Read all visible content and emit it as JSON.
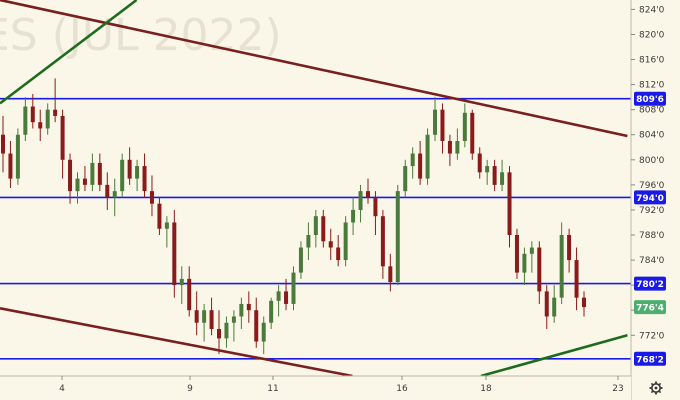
{
  "chart_data": {
    "type": "candlestick",
    "watermark": "ES (JUL 2022)",
    "x_ticks": [
      "4",
      "9",
      "11",
      "16",
      "18",
      "23"
    ],
    "y_ticks": [
      "824'0",
      "820'0",
      "816'0",
      "812'0",
      "808'0",
      "804'0",
      "800'0",
      "796'0",
      "792'0",
      "788'0",
      "784'0",
      "780'0",
      "776'0",
      "772'0"
    ],
    "ylim": [
      765.5,
      825.5
    ],
    "horizontal_levels": [
      {
        "label": "809'6",
        "value": 809.75,
        "color": "#1a1ae6"
      },
      {
        "label": "794'0",
        "value": 794.0,
        "color": "#1a1ae6"
      },
      {
        "label": "780'2",
        "value": 780.25,
        "color": "#1a1ae6"
      },
      {
        "label": "768'2",
        "value": 768.25,
        "color": "#1a1ae6"
      }
    ],
    "last_price": {
      "label": "776'4",
      "value": 776.5,
      "color": "#4caf70"
    },
    "trendlines": [
      {
        "name": "upper-resistance",
        "color": "#7a1f1f",
        "x": [
          0,
          26.0
        ],
        "y": [
          825.5,
          803.8
        ]
      },
      {
        "name": "lower-support",
        "color": "#7a1f1f",
        "x": [
          0,
          15.3
        ],
        "y": [
          776.3,
          765.5
        ]
      },
      {
        "name": "left-uptrend",
        "color": "#1e6b1e",
        "x": [
          0,
          6.9
        ],
        "y": [
          809.0,
          825.5
        ]
      },
      {
        "name": "right-uptrend",
        "color": "#1e6b1e",
        "x": [
          20.3,
          26.0
        ],
        "y": [
          765.5,
          772.0
        ]
      }
    ],
    "candle_colors": {
      "up": "#4a7a3c",
      "down": "#8b1a1a"
    },
    "ohlc": [
      [
        804.0,
        807.0,
        798.0,
        801.0
      ],
      [
        801.0,
        803.0,
        795.5,
        797.0
      ],
      [
        797.0,
        805.0,
        796.0,
        804.0
      ],
      [
        804.0,
        810.0,
        803.0,
        808.5
      ],
      [
        808.5,
        810.5,
        805.0,
        806.0
      ],
      [
        806.0,
        808.0,
        803.0,
        805.0
      ],
      [
        805.0,
        809.0,
        804.0,
        808.0
      ],
      [
        808.0,
        813.0,
        806.0,
        807.0
      ],
      [
        807.0,
        808.0,
        797.0,
        800.0
      ],
      [
        800.0,
        801.0,
        793.0,
        795.0
      ],
      [
        795.0,
        798.0,
        793.0,
        797.0
      ],
      [
        797.0,
        799.0,
        795.0,
        796.0
      ],
      [
        796.0,
        801.0,
        795.0,
        799.5
      ],
      [
        799.5,
        801.0,
        795.0,
        796.0
      ],
      [
        796.0,
        798.0,
        792.0,
        794.0
      ],
      [
        794.0,
        797.0,
        791.0,
        795.0
      ],
      [
        795.0,
        801.0,
        794.0,
        800.0
      ],
      [
        800.0,
        802.0,
        796.0,
        797.0
      ],
      [
        797.0,
        800.0,
        795.0,
        799.0
      ],
      [
        799.0,
        801.0,
        794.0,
        795.0
      ],
      [
        795.0,
        797.5,
        791.0,
        793.0
      ],
      [
        793.0,
        794.0,
        788.0,
        789.0
      ],
      [
        789.0,
        791.0,
        786.0,
        790.0
      ],
      [
        790.0,
        792.0,
        778.0,
        780.0
      ],
      [
        780.0,
        783.0,
        777.0,
        781.0
      ],
      [
        781.0,
        783.0,
        775.0,
        776.0
      ],
      [
        776.0,
        779.0,
        772.0,
        774.0
      ],
      [
        774.0,
        777.0,
        771.0,
        776.0
      ],
      [
        776.0,
        778.0,
        772.0,
        773.0
      ],
      [
        773.0,
        776.0,
        769.0,
        771.5
      ],
      [
        771.5,
        775.0,
        770.0,
        774.0
      ],
      [
        774.0,
        776.0,
        771.0,
        775.0
      ],
      [
        775.0,
        778.0,
        773.0,
        777.0
      ],
      [
        777.0,
        779.0,
        774.0,
        776.0
      ],
      [
        776.0,
        778.0,
        770.0,
        771.0
      ],
      [
        771.0,
        775.0,
        769.0,
        774.0
      ],
      [
        774.0,
        778.0,
        773.0,
        777.5
      ],
      [
        777.5,
        780.0,
        775.0,
        779.0
      ],
      [
        779.0,
        781.0,
        776.0,
        777.0
      ],
      [
        777.0,
        783.0,
        776.0,
        782.0
      ],
      [
        782.0,
        787.0,
        781.0,
        786.0
      ],
      [
        786.0,
        790.0,
        784.0,
        788.0
      ],
      [
        788.0,
        792.0,
        786.0,
        791.0
      ],
      [
        791.0,
        792.0,
        786.0,
        787.0
      ],
      [
        787.0,
        789.0,
        784.0,
        786.0
      ],
      [
        786.0,
        788.0,
        783.0,
        784.0
      ],
      [
        784.0,
        791.0,
        783.0,
        790.0
      ],
      [
        790.0,
        794.0,
        788.0,
        792.0
      ],
      [
        792.0,
        796.0,
        790.0,
        795.0
      ],
      [
        795.0,
        797.0,
        793.0,
        794.0
      ],
      [
        794.0,
        795.0,
        788.0,
        791.0
      ],
      [
        791.0,
        792.0,
        781.0,
        783.0
      ],
      [
        783.0,
        785.0,
        779.0,
        780.5
      ],
      [
        780.5,
        796.0,
        780.0,
        795.0
      ],
      [
        795.0,
        800.0,
        794.0,
        799.0
      ],
      [
        799.0,
        802.0,
        797.0,
        801.0
      ],
      [
        801.0,
        803.0,
        796.0,
        797.0
      ],
      [
        797.0,
        805.0,
        796.0,
        804.0
      ],
      [
        804.0,
        810.0,
        803.0,
        808.0
      ],
      [
        808.0,
        809.0,
        801.0,
        803.0
      ],
      [
        803.0,
        804.0,
        799.0,
        801.0
      ],
      [
        801.0,
        805.0,
        800.0,
        803.0
      ],
      [
        803.0,
        809.0,
        802.0,
        807.5
      ],
      [
        807.5,
        808.0,
        800.0,
        801.0
      ],
      [
        801.0,
        802.0,
        797.0,
        798.0
      ],
      [
        798.0,
        800.0,
        796.0,
        799.0
      ],
      [
        799.0,
        800.0,
        795.0,
        796.0
      ],
      [
        796.0,
        800.0,
        795.0,
        798.0
      ],
      [
        798.0,
        799.0,
        786.0,
        788.0
      ],
      [
        788.0,
        789.0,
        781.0,
        782.0
      ],
      [
        782.0,
        786.0,
        780.0,
        785.0
      ],
      [
        785.0,
        787.0,
        782.0,
        786.0
      ],
      [
        786.0,
        787.0,
        777.0,
        779.0
      ],
      [
        779.0,
        780.0,
        773.0,
        775.0
      ],
      [
        775.0,
        780.0,
        774.0,
        778.0
      ],
      [
        778.0,
        790.0,
        777.0,
        788.0
      ],
      [
        788.0,
        789.0,
        782.0,
        784.0
      ],
      [
        784.0,
        786.0,
        776.0,
        778.0
      ],
      [
        778.0,
        779.0,
        775.0,
        776.5
      ]
    ]
  }
}
